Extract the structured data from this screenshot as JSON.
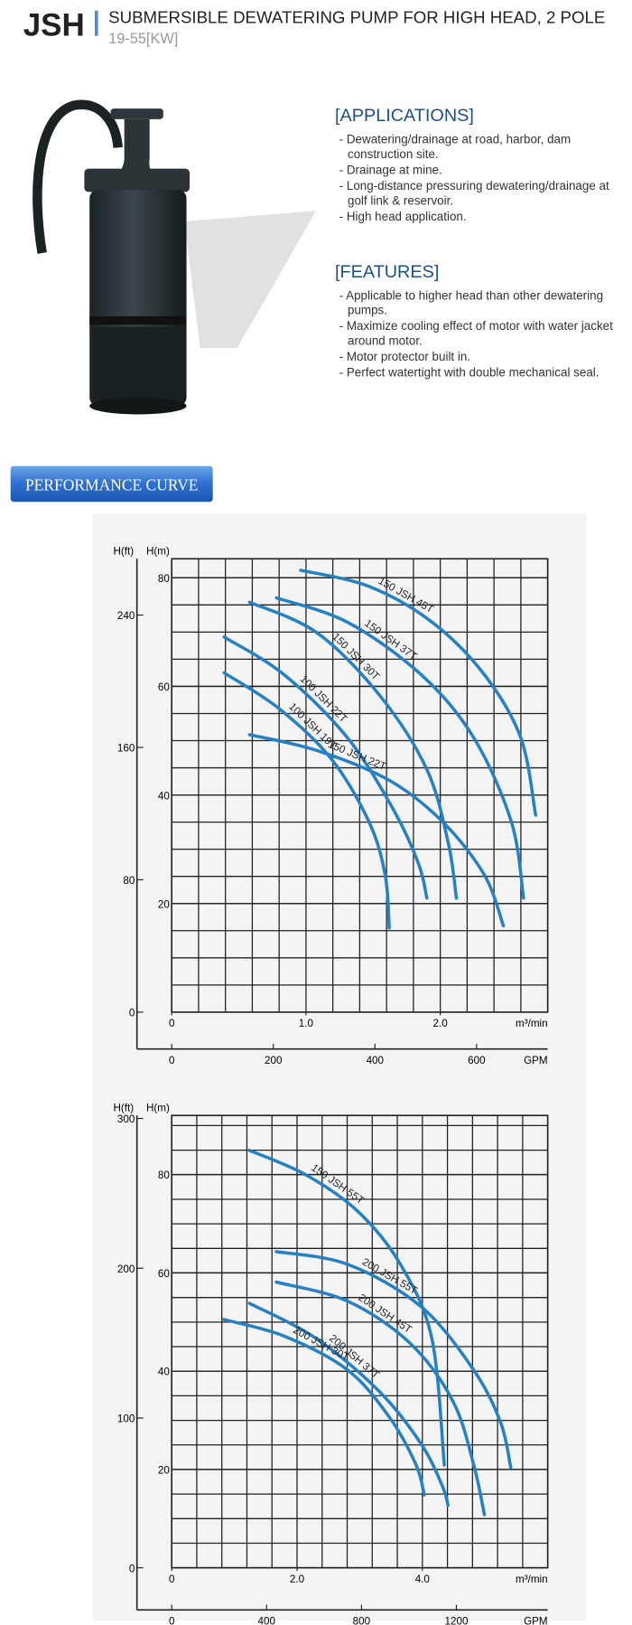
{
  "header": {
    "model": "JSH",
    "title": "SUBMERSIBLE DEWATERING PUMP FOR HIGH HEAD, 2 POLE",
    "subtitle": "19-55[KW]"
  },
  "applications": {
    "heading": "[APPLICATIONS]",
    "items": [
      "- Dewatering/drainage at road, harbor, dam construction site.",
      "- Drainage at mine.",
      "- Long-distance pressuring dewatering/drainage at golf link & reservoir.",
      "- High head application."
    ]
  },
  "features": {
    "heading": "[FEATURES]",
    "items": [
      "- Applicable to higher head than other dewatering pumps.",
      "- Maximize cooling effect of motor with water jacket around motor.",
      "- Motor protector built in.",
      "- Perfect watertight with double mechanical seal."
    ]
  },
  "section_button": "PERFORMANCE CURVE",
  "chart_data": [
    {
      "type": "line",
      "ylabel": "H(m)",
      "y2label": "H(ft)",
      "xlabel": "m³/min",
      "x2label": "GPM",
      "xlim": [
        0,
        2.8
      ],
      "xticks": [
        0,
        {
          "value": 1,
          "label": "1.0"
        },
        {
          "value": 2,
          "label": "2.0"
        }
      ],
      "x2lim": [
        0,
        740
      ],
      "x2ticks": [
        0,
        200,
        400,
        600
      ],
      "ylim": [
        0,
        83.5
      ],
      "yticks": [
        20,
        40,
        60,
        80
      ],
      "y2lim": [
        0,
        274
      ],
      "y2ticks": [
        0,
        80,
        160,
        240
      ],
      "grid": true,
      "series": [
        {
          "name": "150 JSH 45T",
          "color": "#2680c4",
          "x": [
            0.96,
            1.47,
            1.94,
            2.33,
            2.6,
            2.71
          ],
          "values": [
            81.4,
            78.4,
            71.8,
            62.1,
            50.5,
            36.3
          ]
        },
        {
          "name": "150 JSH 37T",
          "color": "#2680c4",
          "x": [
            0.78,
            1.31,
            1.86,
            2.25,
            2.53,
            2.62
          ],
          "values": [
            76.3,
            71.8,
            62.1,
            50.5,
            35,
            21
          ]
        },
        {
          "name": "150 JSH 30T",
          "color": "#2680c4",
          "x": [
            0.58,
            1.08,
            1.55,
            1.9,
            2.06,
            2.12
          ],
          "values": [
            75.5,
            69.9,
            58.3,
            44.7,
            31.1,
            21
          ]
        },
        {
          "name": "100 JSH 22T",
          "color": "#2680c4",
          "x": [
            0.39,
            0.84,
            1.31,
            1.66,
            1.84,
            1.9
          ],
          "values": [
            69.1,
            62.1,
            50.5,
            36.9,
            27.2,
            21
          ]
        },
        {
          "name": "100 JSH 19T",
          "color": "#2680c4",
          "x": [
            0.39,
            0.8,
            1.19,
            1.47,
            1.59,
            1.62
          ],
          "values": [
            62.5,
            55.9,
            46.6,
            35,
            25.2,
            15.5
          ]
        },
        {
          "name": "150 JSH 22T",
          "color": "#2680c4",
          "x": [
            0.58,
            1.08,
            1.62,
            2.02,
            2.33,
            2.47
          ],
          "values": [
            51.1,
            48.2,
            42.7,
            35,
            25.2,
            15.9
          ]
        }
      ]
    },
    {
      "type": "line",
      "ylabel": "H(m)",
      "y2label": "H(ft)",
      "xlabel": "m³/min",
      "x2label": "GPM",
      "xlim": [
        0,
        6
      ],
      "xticks": [
        0,
        {
          "value": 2,
          "label": "2.0"
        },
        {
          "value": 4,
          "label": "4.0"
        }
      ],
      "x2lim": [
        0,
        1585
      ],
      "x2ticks": [
        0,
        400,
        800,
        1200
      ],
      "ylim": [
        0,
        92
      ],
      "yticks": [
        20,
        40,
        60,
        80
      ],
      "y2lim": [
        0,
        302
      ],
      "y2ticks": [
        0,
        100,
        200,
        300
      ],
      "grid": true,
      "series": [
        {
          "name": "150 JSH 55T",
          "color": "#2680c4",
          "x": [
            1.24,
            2.13,
            2.97,
            3.65,
            4.15,
            4.35
          ],
          "values": [
            84.9,
            80,
            72.5,
            61.7,
            46.7,
            20.9
          ]
        },
        {
          "name": "200 JSH 55T",
          "color": "#2680c4",
          "x": [
            1.67,
            2.81,
            3.98,
            4.82,
            5.25,
            5.41
          ],
          "values": [
            64.3,
            61.7,
            53.1,
            40.2,
            29.5,
            20.4
          ]
        },
        {
          "name": "200 JSH 45T",
          "color": "#2680c4",
          "x": [
            1.67,
            2.81,
            3.81,
            4.49,
            4.82,
            4.99
          ],
          "values": [
            58.1,
            54.2,
            45.6,
            33.8,
            20.9,
            10.8
          ]
        },
        {
          "name": "200 JSH 37T",
          "color": "#2680c4",
          "x": [
            1.24,
            2.3,
            3.31,
            3.98,
            4.32,
            4.41
          ],
          "values": [
            53.8,
            46.7,
            35.9,
            25.2,
            16.6,
            12.7
          ]
        },
        {
          "name": "200 JSH 30T",
          "color": "#2680c4",
          "x": [
            0.83,
            1.8,
            2.81,
            3.48,
            3.9,
            4.03
          ],
          "values": [
            50.5,
            47.1,
            40.2,
            30.5,
            20.9,
            14.8
          ]
        }
      ]
    }
  ]
}
